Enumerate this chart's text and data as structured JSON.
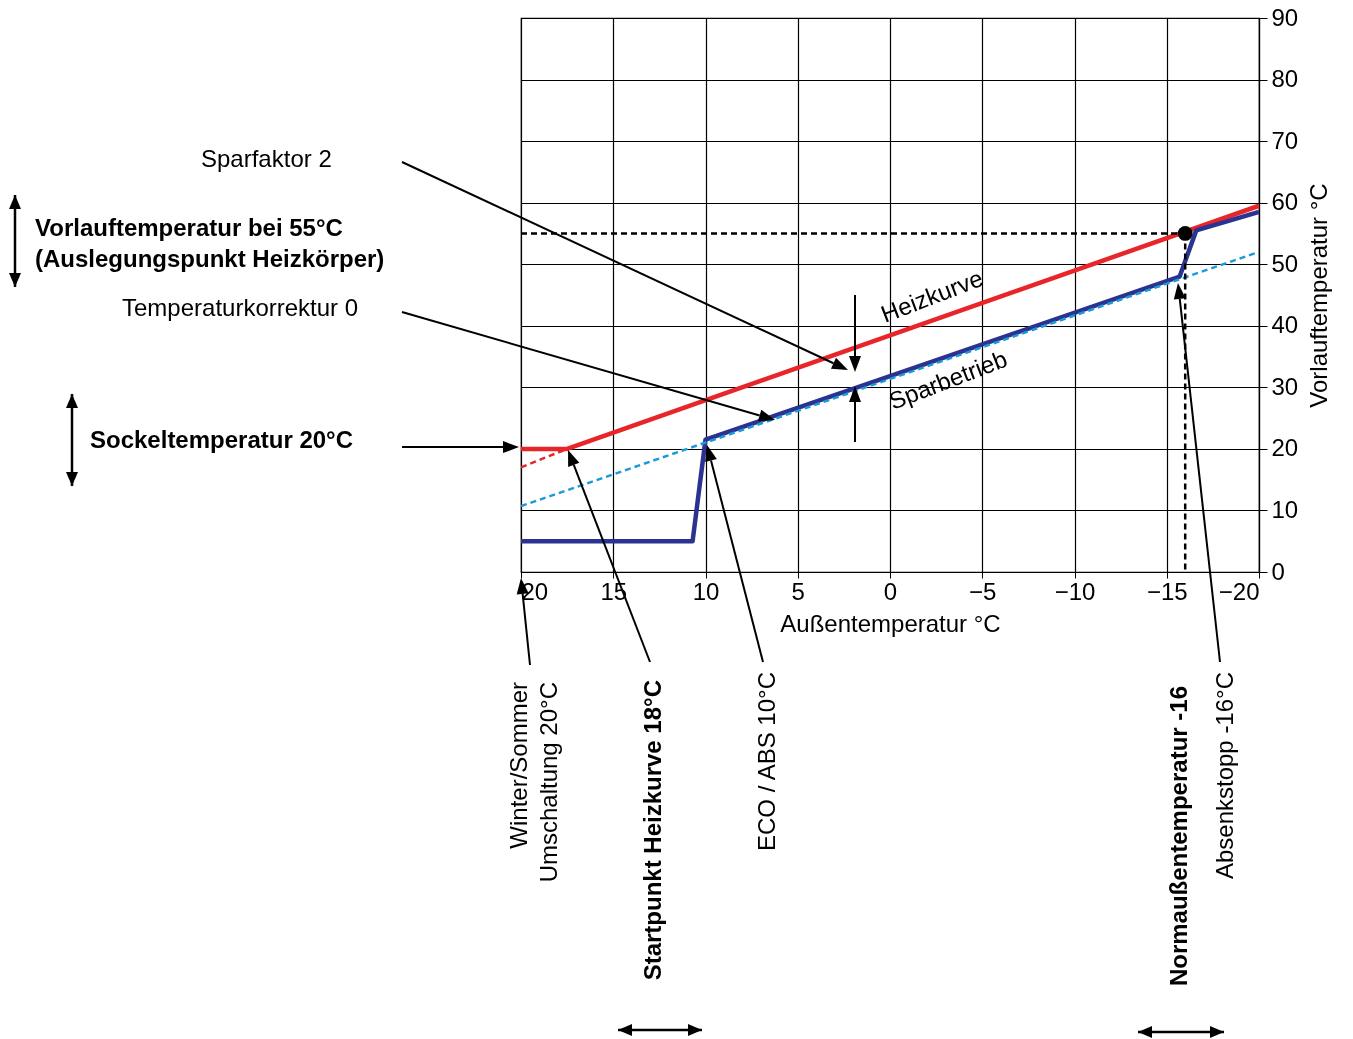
{
  "chart_data": {
    "type": "line",
    "xlabel": "Außentemperatur °C",
    "ylabel": "Vorlauftemperatur °C",
    "xlim": [
      20,
      -20
    ],
    "xticks": [
      20,
      15,
      10,
      5,
      0,
      -5,
      -10,
      -15,
      -20
    ],
    "ylim": [
      0,
      90
    ],
    "yticks": [
      0,
      10,
      20,
      30,
      40,
      50,
      60,
      70,
      80,
      90
    ],
    "grid": true,
    "series": [
      {
        "type": "line",
        "color": "#e8262a",
        "line_style": "dashed",
        "x": [
          20,
          17.5
        ],
        "values": [
          17,
          20
        ]
      },
      {
        "type": "line",
        "color": "#e8262a",
        "line_style": "solid",
        "x": [
          20,
          17.5,
          -20
        ],
        "values": [
          20,
          20,
          59.5
        ]
      },
      {
        "type": "line",
        "color": "#2b3390",
        "line_style": "solid",
        "x": [
          20,
          10.7,
          10,
          -15.7,
          -16.6,
          -20
        ],
        "values": [
          5,
          5,
          21.5,
          48,
          55.5,
          58.5
        ]
      },
      {
        "type": "line",
        "color": "#1a9ad7",
        "line_style": "dashed",
        "x": [
          20,
          -20
        ],
        "values": [
          10.7,
          52
        ]
      },
      {
        "type": "line",
        "color": "#000000",
        "line_style": "dashed",
        "x": [
          20,
          -16
        ],
        "values": [
          55,
          55
        ]
      },
      {
        "type": "line",
        "color": "#000000",
        "line_style": "dashed",
        "x": [
          -16,
          -16
        ],
        "values": [
          55,
          0
        ]
      },
      {
        "type": "scatter",
        "color": "#000000",
        "marker": "circle",
        "x": [
          -16
        ],
        "values": [
          55
        ]
      }
    ],
    "annotations": [
      "Sparfaktor 2",
      "Vorlauftemperatur bei 55°C",
      "(Auslegungspunkt Heizkörper)",
      "Temperaturkorrektur 0",
      "Sockeltemperatur 20°C",
      "Heizkurve",
      "Sparbetrieb",
      "Winter/Sommer",
      "Umschaltung 20°C",
      "Startpunkt Heizkurve 18°C",
      "ECO / ABS 10°C",
      "Normaußentemperatur -16",
      "Absenkstopp -16°C"
    ]
  }
}
